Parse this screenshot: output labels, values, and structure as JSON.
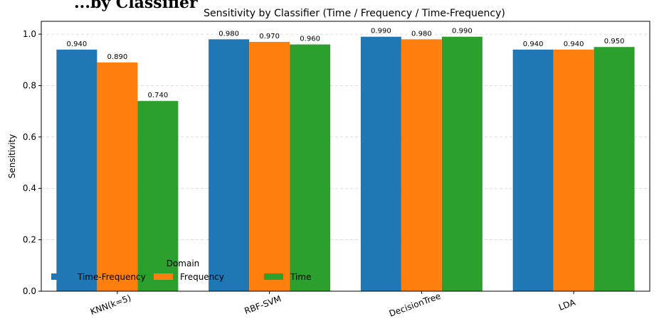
{
  "page": {
    "background_title": "...by Classifier"
  },
  "chart_data": {
    "type": "bar",
    "title": "Sensitivity by Classifier (Time / Frequency / Time-Frequency)",
    "xlabel": "",
    "ylabel": "Sensitivity",
    "ylim": [
      0,
      1.05
    ],
    "yticks": [
      0.0,
      0.2,
      0.4,
      0.6,
      0.8,
      1.0
    ],
    "ytick_labels": [
      "0.0",
      "0.2",
      "0.4",
      "0.6",
      "0.8",
      "1.0"
    ],
    "grid": true,
    "categories": [
      "KNN(k=5)",
      "RBF-SVM",
      "DecisionTree",
      "LDA"
    ],
    "series": [
      {
        "name": "Time-Frequency",
        "color": "#1f77b4",
        "values": [
          0.94,
          0.98,
          0.99,
          0.94
        ],
        "labels": [
          "0.940",
          "0.980",
          "0.990",
          "0.940"
        ]
      },
      {
        "name": "Frequency",
        "color": "#ff7f0e",
        "values": [
          0.89,
          0.97,
          0.98,
          0.94
        ],
        "labels": [
          "0.890",
          "0.970",
          "0.980",
          "0.940"
        ]
      },
      {
        "name": "Time",
        "color": "#2ca02c",
        "values": [
          0.74,
          0.96,
          0.99,
          0.95
        ],
        "labels": [
          "0.740",
          "0.960",
          "0.990",
          "0.950"
        ]
      }
    ],
    "legend": {
      "title": "Domain",
      "placement": "lower-left",
      "columns": 3
    }
  }
}
